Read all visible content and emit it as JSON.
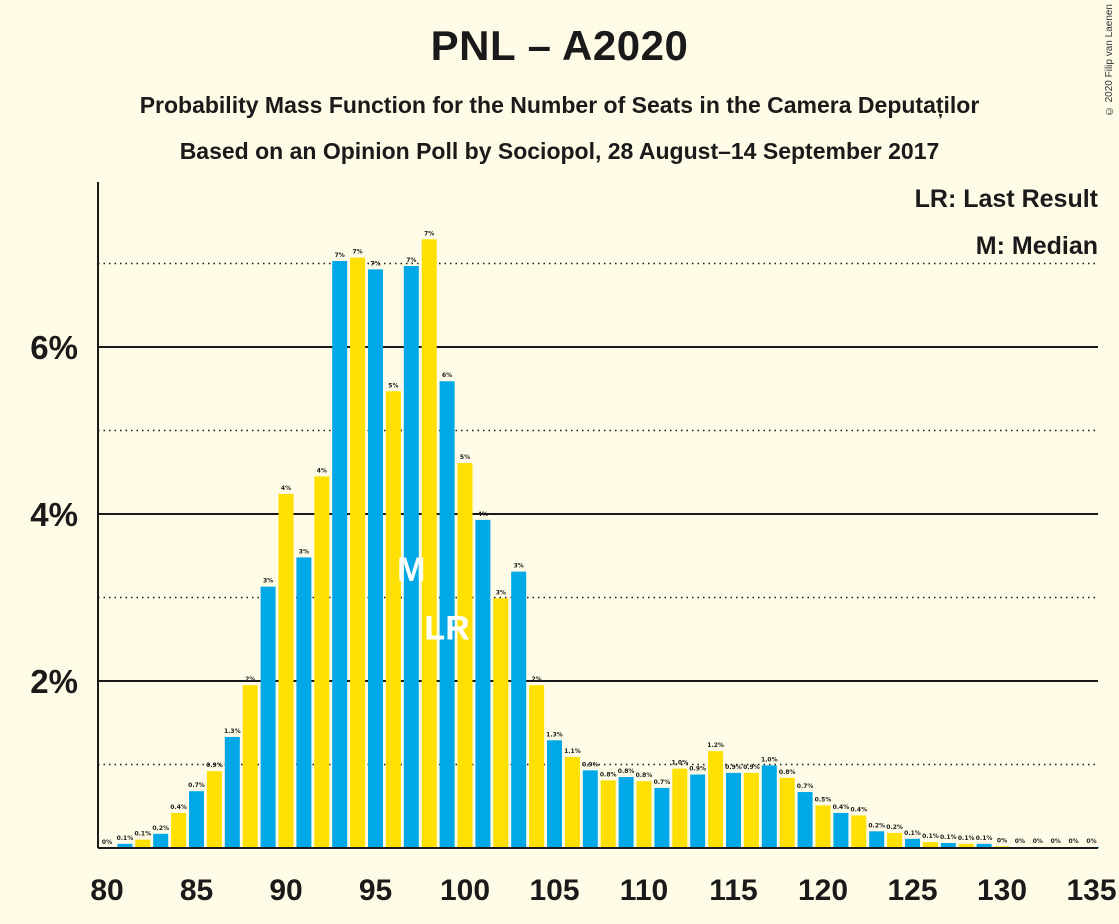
{
  "header": {
    "title": "PNL – A2020",
    "subtitle": "Probability Mass Function for the Number of Seats in the Camera Deputaților",
    "subtitle2": "Based on an Opinion Poll by Sociopol, 28 August–14 September 2017",
    "copyright": "© 2020 Filip van Laenen"
  },
  "legend": {
    "lr": "LR: Last Result",
    "m": "M: Median"
  },
  "chart_data": {
    "type": "bar",
    "x": [
      80,
      81,
      82,
      83,
      84,
      85,
      86,
      87,
      88,
      89,
      90,
      91,
      92,
      93,
      94,
      95,
      96,
      97,
      98,
      99,
      100,
      101,
      102,
      103,
      104,
      105,
      106,
      107,
      108,
      109,
      110,
      111,
      112,
      113,
      114,
      115,
      116,
      117,
      118,
      119,
      120,
      121,
      122,
      123,
      124,
      125,
      126,
      127,
      128,
      129,
      130,
      131,
      132,
      133,
      134,
      135
    ],
    "values": [
      0,
      0.05,
      0.1,
      0.17,
      0.42,
      0.68,
      0.92,
      1.33,
      1.95,
      3.13,
      4.24,
      3.48,
      4.45,
      7.03,
      7.07,
      6.93,
      5.47,
      6.97,
      7.29,
      5.59,
      4.61,
      3.93,
      2.99,
      3.31,
      1.95,
      1.29,
      1.09,
      0.93,
      0.81,
      0.85,
      0.8,
      0.72,
      0.95,
      0.88,
      1.16,
      0.9,
      0.9,
      0.99,
      0.84,
      0.67,
      0.51,
      0.42,
      0.39,
      0.2,
      0.18,
      0.11,
      0.07,
      0.06,
      0.05,
      0.05,
      0.02,
      0.01,
      0.01,
      0.01,
      0.01,
      0.01
    ],
    "labels": [
      "0%",
      "0.1%",
      "0.1%",
      "0.2%",
      "0.4%",
      "0.7%",
      "0.9%",
      "1.3%",
      "2%",
      "3%",
      "4%",
      "3%",
      "4%",
      "7%",
      "7%",
      "7%",
      "5%",
      "7%",
      "7%",
      "6%",
      "5%",
      "4%",
      "3%",
      "3%",
      "2%",
      "1.3%",
      "1.1%",
      "0.9%",
      "0.8%",
      "0.8%",
      "0.8%",
      "0.7%",
      "1.0%",
      "0.9%",
      "1.2%",
      "0.9%",
      "0.9%",
      "1.0%",
      "0.8%",
      "0.7%",
      "0.5%",
      "0.4%",
      "0.4%",
      "0.2%",
      "0.2%",
      "0.1%",
      "0.1%",
      "0.1%",
      "0.1%",
      "0.1%",
      "0%",
      "0%",
      "0%",
      "0%",
      "0%",
      "0%"
    ],
    "xticks": [
      80,
      85,
      90,
      95,
      100,
      105,
      110,
      115,
      120,
      125,
      130,
      135
    ],
    "yticks": [
      "2%",
      "4%",
      "6%"
    ],
    "ytick_values": [
      2,
      4,
      6
    ],
    "ylim": [
      0,
      7.8
    ],
    "xlim": [
      80,
      135
    ],
    "dotted_gridlines": [
      1,
      3,
      5,
      7
    ],
    "solid_gridlines": [
      2,
      4,
      6
    ],
    "colors": {
      "blue": "#00A8E8",
      "yellow": "#FFE000",
      "background": "#FFFBE6",
      "text": "#1a1a1a"
    },
    "markers": [
      {
        "seat": 97,
        "text": "M"
      },
      {
        "seat": 99,
        "text": "LR"
      }
    ]
  }
}
